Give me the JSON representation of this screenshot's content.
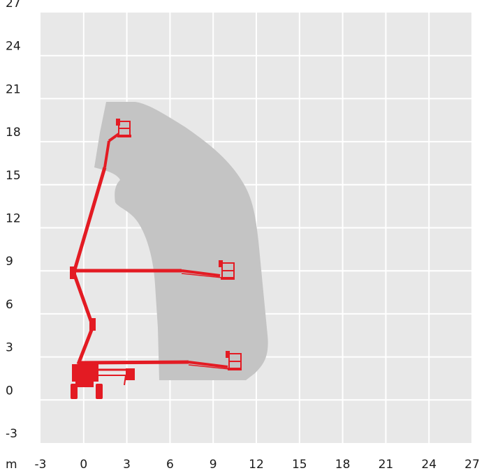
{
  "diagram": {
    "x_axis": {
      "unit_label": "m",
      "min": -3,
      "max": 27,
      "step": 3,
      "tick_labels": [
        "-3",
        "0",
        "3",
        "6",
        "9",
        "12",
        "15",
        "18",
        "21",
        "24",
        "27"
      ]
    },
    "y_axis": {
      "min": -3,
      "max": 27,
      "step": 3,
      "tick_labels": [
        "-3",
        "0",
        "3",
        "6",
        "9",
        "12",
        "15",
        "18",
        "21",
        "24",
        "27"
      ]
    },
    "colors": {
      "plot_background": "#e8e8e8",
      "grid": "#ffffff",
      "working_envelope": "#c4c4c4",
      "machine": "#e31b23"
    },
    "machine_positions": [
      "boom-raised-max-height",
      "boom-horizontal-at-9m",
      "boom-horizontal-at-low-height"
    ]
  }
}
